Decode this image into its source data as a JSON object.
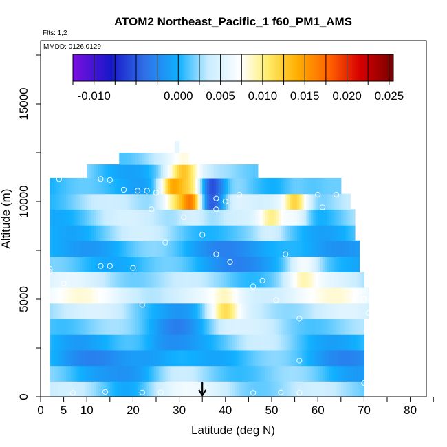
{
  "chart_data": {
    "type": "heatmap",
    "title": "ATOM2 Northeast_Pacific_1 f60_PM1_AMS",
    "flights_label": "Flts: 1,2",
    "dates_label": "MMDD: 0126,0129",
    "xlabel": "Latitude (deg N)",
    "ylabel": "Altitude (m)",
    "xlim": [
      0,
      85
    ],
    "ylim": [
      0,
      17500
    ],
    "x_ticks": [
      0,
      5,
      10,
      20,
      30,
      40,
      50,
      60,
      70,
      80
    ],
    "y_ticks": [
      0,
      5000,
      10000,
      15000
    ],
    "colorbar": {
      "range": [
        -0.0125,
        0.0255
      ],
      "ticks": [
        -0.01,
        0.0,
        0.005,
        0.01,
        0.015,
        0.02,
        0.025
      ],
      "tick_labels": [
        "-0.010",
        "0.000",
        "0.005",
        "0.010",
        "0.015",
        "0.020",
        "0.025"
      ],
      "colors": [
        "#7a0fe0",
        "#1818c8",
        "#3070e8",
        "#10b0ff",
        "#c8ecff",
        "#ffffff",
        "#ffee70",
        "#ffb000",
        "#ff6000",
        "#d80000",
        "#780000"
      ]
    },
    "arrow_latitude": 35,
    "grid": false,
    "legend": "none",
    "layers": [
      {
        "alt": 400,
        "lat_min": 2,
        "lat_max": 70,
        "base": 0.0035
      },
      {
        "alt": 1200,
        "lat_min": 2,
        "lat_max": 70,
        "base": 0.0015
      },
      {
        "alt": 2000,
        "lat_min": 2,
        "lat_max": 70,
        "base": 0.0
      },
      {
        "alt": 2800,
        "lat_min": 2,
        "lat_max": 70,
        "base": 0.001
      },
      {
        "alt": 3600,
        "lat_min": 2,
        "lat_max": 70,
        "base": 0.002
      },
      {
        "alt": 4400,
        "lat_min": 2,
        "lat_max": 71,
        "base": 0.003
      },
      {
        "alt": 5200,
        "lat_min": 2,
        "lat_max": 71,
        "base": 0.0055
      },
      {
        "alt": 6000,
        "lat_min": 2,
        "lat_max": 70,
        "base": 0.003
      },
      {
        "alt": 6800,
        "lat_min": 2,
        "lat_max": 69,
        "base": 0.0
      },
      {
        "alt": 7600,
        "lat_min": 2,
        "lat_max": 69,
        "base": -0.0005
      },
      {
        "alt": 8400,
        "lat_min": 2,
        "lat_max": 68,
        "base": 0.0015
      },
      {
        "alt": 9200,
        "lat_min": 2,
        "lat_max": 68,
        "base": 0.0025
      },
      {
        "alt": 10000,
        "lat_min": 2,
        "lat_max": 67,
        "base": 0.003
      },
      {
        "alt": 10800,
        "lat_min": 2,
        "lat_max": 65,
        "base": 0.001
      },
      {
        "alt": 11600,
        "lat_min": 10,
        "lat_max": 47,
        "base": 0.002
      },
      {
        "alt": 12200,
        "lat_min": 17,
        "lat_max": 33,
        "base": 0.004
      },
      {
        "alt": 12800,
        "lat_min": 29,
        "lat_max": 30,
        "base": 0.005
      }
    ],
    "hotspots": [
      {
        "lat": 33,
        "alt": 10200,
        "value": 0.022
      },
      {
        "lat": 29,
        "alt": 10600,
        "value": 0.016
      },
      {
        "lat": 37,
        "alt": 10400,
        "value": -0.01
      },
      {
        "lat": 31,
        "alt": 11500,
        "value": 0.013
      },
      {
        "lat": 55,
        "alt": 9800,
        "value": 0.013
      },
      {
        "lat": 40,
        "alt": 4600,
        "value": 0.012
      },
      {
        "lat": 57,
        "alt": 6300,
        "value": 0.01
      },
      {
        "lat": 50,
        "alt": 9200,
        "value": 0.01
      }
    ],
    "samples": [
      {
        "lat": 7,
        "alt": 200
      },
      {
        "lat": 14,
        "alt": 250
      },
      {
        "lat": 22,
        "alt": 220
      },
      {
        "lat": 26,
        "alt": 230
      },
      {
        "lat": 46,
        "alt": 200
      },
      {
        "lat": 52,
        "alt": 220
      },
      {
        "lat": 56,
        "alt": 200
      },
      {
        "lat": 70,
        "alt": 700
      },
      {
        "lat": 56,
        "alt": 1850
      },
      {
        "lat": 56,
        "alt": 4000
      },
      {
        "lat": 51,
        "alt": 4950
      },
      {
        "lat": 71,
        "alt": 4300
      },
      {
        "lat": 22,
        "alt": 4700
      },
      {
        "lat": 70,
        "alt": 5000
      },
      {
        "lat": 69,
        "alt": 5400
      },
      {
        "lat": 5,
        "alt": 5800
      },
      {
        "lat": 46,
        "alt": 5650
      },
      {
        "lat": 48,
        "alt": 5950
      },
      {
        "lat": 2,
        "alt": 6400
      },
      {
        "lat": 2,
        "alt": 6550
      },
      {
        "lat": 13,
        "alt": 6700
      },
      {
        "lat": 15,
        "alt": 6700
      },
      {
        "lat": 20,
        "alt": 6600
      },
      {
        "lat": 41,
        "alt": 6900
      },
      {
        "lat": 38,
        "alt": 7300
      },
      {
        "lat": 53,
        "alt": 7300
      },
      {
        "lat": 27,
        "alt": 7900
      },
      {
        "lat": 35,
        "alt": 8300
      },
      {
        "lat": 31,
        "alt": 9200
      },
      {
        "lat": 24,
        "alt": 9600
      },
      {
        "lat": 38,
        "alt": 9600
      },
      {
        "lat": 61,
        "alt": 9700
      },
      {
        "lat": 40,
        "alt": 10000
      },
      {
        "lat": 60,
        "alt": 10350
      },
      {
        "lat": 64,
        "alt": 10350
      },
      {
        "lat": 43,
        "alt": 10350
      },
      {
        "lat": 18,
        "alt": 10600
      },
      {
        "lat": 21,
        "alt": 10550
      },
      {
        "lat": 23,
        "alt": 10550
      },
      {
        "lat": 25,
        "alt": 10450
      },
      {
        "lat": 4,
        "alt": 11150
      },
      {
        "lat": 13,
        "alt": 11150
      },
      {
        "lat": 15,
        "alt": 11100
      },
      {
        "lat": 70,
        "alt": 10900
      },
      {
        "lat": 38,
        "alt": 10150
      }
    ]
  }
}
